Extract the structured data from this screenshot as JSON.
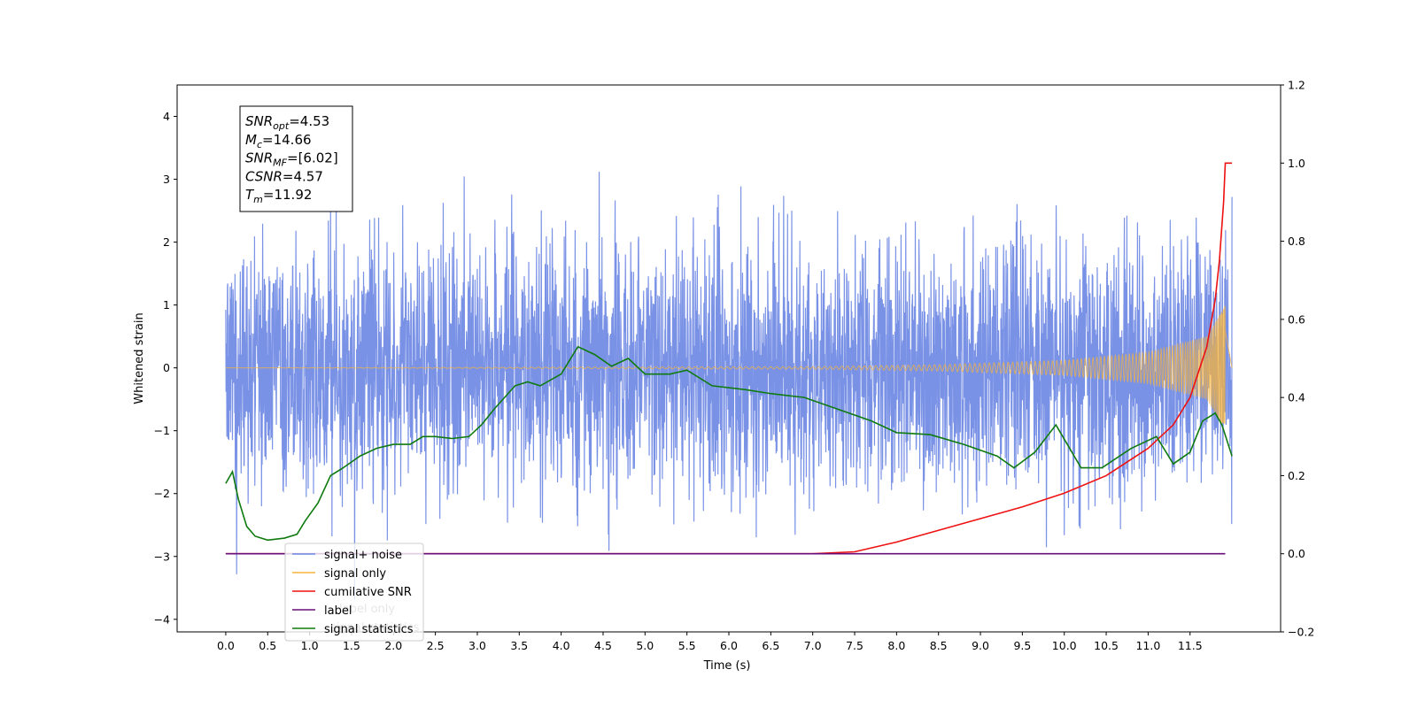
{
  "chart_data": {
    "type": "line",
    "xlabel": "Time (s)",
    "ylabel": "Whitened strain",
    "xlim": [
      -0.58,
      12.58
    ],
    "ylim_left": [
      -4.2,
      4.5
    ],
    "ylim_right": [
      -0.2,
      1.2
    ],
    "x_ticks": [
      0.0,
      0.5,
      1.0,
      1.5,
      2.0,
      2.5,
      3.0,
      3.5,
      4.0,
      4.5,
      5.0,
      5.5,
      6.0,
      6.5,
      7.0,
      7.5,
      8.0,
      8.5,
      9.0,
      9.5,
      10.0,
      10.5,
      11.0,
      11.5
    ],
    "x_tick_labels": [
      "0.0",
      "0.5",
      "1.0",
      "1.5",
      "2.0",
      "2.5",
      "3.0",
      "3.5",
      "4.0",
      "4.5",
      "5.0",
      "5.5",
      "6.0",
      "6.5",
      "7.0",
      "7.5",
      "8.0",
      "8.5",
      "9.0",
      "9.5",
      "10.0",
      "10.5",
      "11.0",
      "11.5"
    ],
    "y_ticks_left": [
      -4,
      -3,
      -2,
      -1,
      0,
      1,
      2,
      3,
      4
    ],
    "y_tick_labels_left": [
      "−4",
      "−3",
      "−2",
      "−1",
      "0",
      "1",
      "2",
      "3",
      "4"
    ],
    "y_ticks_right": [
      -0.2,
      0.0,
      0.2,
      0.4,
      0.6,
      0.8,
      1.0,
      1.2
    ],
    "y_tick_labels_right": [
      "−0.2",
      "0.0",
      "0.2",
      "0.4",
      "0.6",
      "0.8",
      "1.0",
      "1.2"
    ],
    "grid": false,
    "legend_placement": "lower-left",
    "series": [
      {
        "name": "signal+ noise",
        "axis": "left",
        "color": "#6b86e3",
        "kind": "noise",
        "x_range": [
          0.0,
          12.0
        ],
        "approx_std": 1.0,
        "approx_peak_range": [
          -3.7,
          4.1
        ],
        "approx_envelope_range": [
          -2.9,
          3.6
        ]
      },
      {
        "name": "signal only",
        "axis": "left",
        "color": "#f5b33c",
        "kind": "chirp",
        "x_range": [
          0.0,
          12.0
        ],
        "amplitude_points": [
          [
            0.0,
            0.0
          ],
          [
            7.0,
            0.02
          ],
          [
            8.5,
            0.05
          ],
          [
            10.0,
            0.12
          ],
          [
            11.0,
            0.25
          ],
          [
            11.7,
            0.5
          ],
          [
            11.92,
            1.0
          ],
          [
            12.0,
            0.0
          ]
        ]
      },
      {
        "name": "cumilative SNR",
        "axis": "right",
        "color": "#ee1111",
        "x": [
          0.0,
          7.0,
          7.5,
          8.0,
          8.5,
          9.0,
          9.5,
          10.0,
          10.5,
          11.0,
          11.3,
          11.5,
          11.7,
          11.8,
          11.85,
          11.9,
          11.92,
          12.0
        ],
        "y": [
          0.0,
          0.0,
          0.005,
          0.03,
          0.06,
          0.09,
          0.12,
          0.155,
          0.2,
          0.27,
          0.33,
          0.4,
          0.53,
          0.65,
          0.75,
          0.9,
          1.0,
          1.0
        ]
      },
      {
        "name": "label",
        "axis": "right",
        "color": "#6a0d7a",
        "x": [
          0.0,
          11.92
        ],
        "y": [
          0.0,
          0.0
        ]
      },
      {
        "name": "signal statistics",
        "axis": "right",
        "color": "#0f7a0f",
        "x": [
          0.0,
          0.08,
          0.15,
          0.25,
          0.35,
          0.5,
          0.7,
          0.85,
          0.95,
          1.1,
          1.25,
          1.4,
          1.6,
          1.8,
          2.0,
          2.2,
          2.35,
          2.5,
          2.7,
          2.9,
          3.05,
          3.2,
          3.45,
          3.6,
          3.75,
          4.0,
          4.2,
          4.4,
          4.6,
          4.8,
          5.0,
          5.3,
          5.5,
          5.8,
          6.2,
          6.5,
          6.9,
          7.3,
          7.7,
          8.0,
          8.4,
          8.8,
          9.2,
          9.4,
          9.65,
          9.9,
          10.2,
          10.45,
          10.8,
          11.1,
          11.3,
          11.5,
          11.65,
          11.8,
          11.88,
          12.0
        ],
        "y": [
          0.18,
          0.21,
          0.14,
          0.07,
          0.045,
          0.035,
          0.04,
          0.05,
          0.085,
          0.13,
          0.2,
          0.22,
          0.25,
          0.27,
          0.28,
          0.28,
          0.3,
          0.3,
          0.295,
          0.3,
          0.33,
          0.37,
          0.43,
          0.44,
          0.43,
          0.46,
          0.53,
          0.51,
          0.48,
          0.5,
          0.46,
          0.46,
          0.47,
          0.43,
          0.42,
          0.41,
          0.4,
          0.37,
          0.34,
          0.31,
          0.305,
          0.28,
          0.25,
          0.22,
          0.26,
          0.33,
          0.22,
          0.22,
          0.27,
          0.3,
          0.23,
          0.26,
          0.34,
          0.36,
          0.33,
          0.25
        ]
      }
    ],
    "legend_entries": [
      {
        "label": "signal+ noise",
        "color": "#6b86e3"
      },
      {
        "label": "signal only",
        "color": "#f5b33c"
      },
      {
        "label": "cumilative SNR",
        "color": "#ee1111"
      },
      {
        "label": "label",
        "color": "#6a0d7a"
      },
      {
        "label": "signal statistics",
        "color": "#0f7a0f"
      }
    ],
    "legend_ghost_text": [
      "label only",
      "signal statistics"
    ],
    "annotation_box": {
      "lines": [
        {
          "sym": "SNR",
          "sub": "opt",
          "value": "=4.53"
        },
        {
          "sym": "M",
          "sub": "c",
          "value": "=14.66"
        },
        {
          "sym": "SNR",
          "sub": "MF",
          "value": "=[6.02]"
        },
        {
          "sym": "CSNR",
          "sub": "",
          "value": "=4.57"
        },
        {
          "sym": "T",
          "sub": "m",
          "value": "=11.92"
        }
      ]
    }
  }
}
